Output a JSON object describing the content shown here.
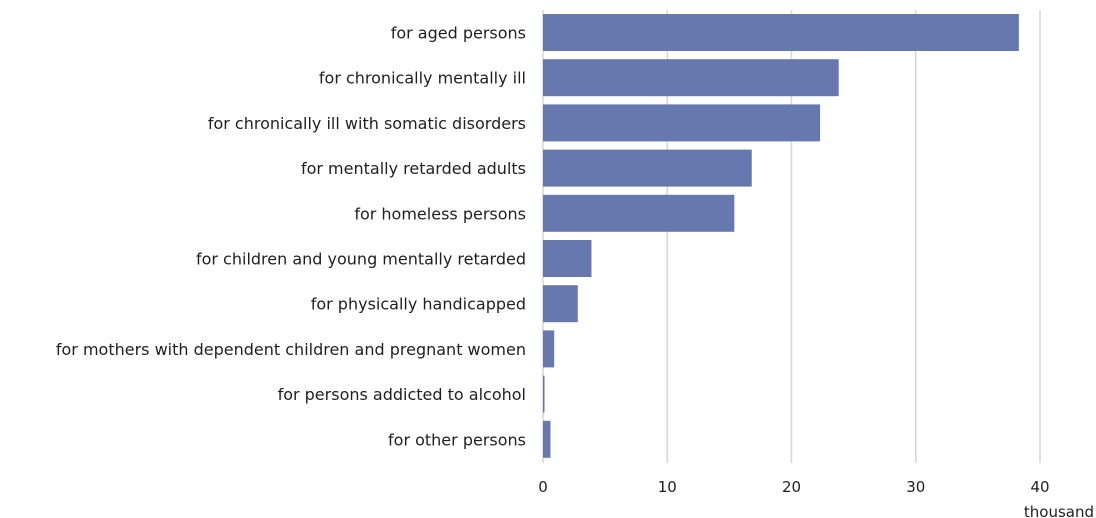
{
  "chart_data": {
    "type": "bar",
    "orientation": "horizontal",
    "categories": [
      "for aged persons",
      "for chronically mentally ill",
      "for chronically ill with somatic disorders",
      "for mentally retarded adults",
      "for homeless persons",
      "for children and young mentally retarded",
      "for physically handicapped",
      "for mothers with dependent children and pregnant women",
      "for persons addicted to alcohol",
      "for other persons"
    ],
    "values": [
      38.3,
      23.8,
      22.3,
      16.8,
      15.4,
      3.9,
      2.8,
      0.9,
      0.1,
      0.6
    ],
    "x_ticks": [
      "0",
      "10",
      "20",
      "30",
      "40"
    ],
    "xlim": [
      0,
      40
    ],
    "unit_label": "thousand",
    "title": "",
    "xlabel": "",
    "ylabel": "",
    "grid": "vertical",
    "bar_color": "#6778ae"
  }
}
